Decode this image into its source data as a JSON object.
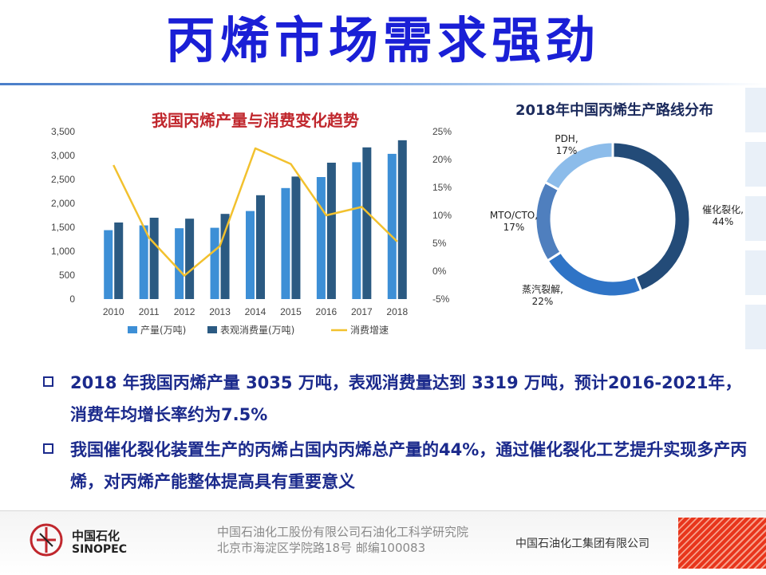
{
  "slide": {
    "title": "丙烯市场需求强劲"
  },
  "chart_data": [
    {
      "type": "bar",
      "title": "我国丙烯产量与消费变化趋势",
      "categories": [
        "2010",
        "2011",
        "2012",
        "2013",
        "2014",
        "2015",
        "2016",
        "2017",
        "2018"
      ],
      "series": [
        {
          "name": "产量(万吨)",
          "type": "bar",
          "axis": "left",
          "color": "#3d8fd6",
          "values": [
            1440,
            1540,
            1480,
            1490,
            1840,
            2320,
            2550,
            2860,
            3035
          ]
        },
        {
          "name": "表观消费量(万吨)",
          "type": "bar",
          "axis": "left",
          "color": "#2b5a82",
          "values": [
            1600,
            1700,
            1680,
            1780,
            2170,
            2560,
            2850,
            3170,
            3319
          ]
        },
        {
          "name": "消费增速",
          "type": "line",
          "axis": "right",
          "color": "#f2c12e",
          "values": [
            19.0,
            6.0,
            -0.8,
            4.5,
            22.0,
            19.2,
            10.0,
            11.5,
            5.3
          ]
        }
      ],
      "yticks_left": [
        "3,500",
        "3,000",
        "2,500",
        "2,000",
        "1,500",
        "1,000",
        "500",
        "0"
      ],
      "yticks_right": [
        "25%",
        "20%",
        "15%",
        "10%",
        "5%",
        "0%",
        "-5%"
      ],
      "ylim_left": [
        0,
        3500
      ],
      "ylim_right": [
        -5,
        25
      ],
      "legend_position": "bottom",
      "grid": false
    },
    {
      "type": "pie",
      "title": "2018年中国丙烯生产路线分布",
      "categories": [
        "催化裂化",
        "蒸汽裂解",
        "MTO/CTO",
        "PDH"
      ],
      "values": [
        44,
        22,
        17,
        17
      ],
      "labels": [
        [
          "催化裂化,",
          "44%"
        ],
        [
          "蒸汽裂解,",
          "22%"
        ],
        [
          "MTO/CTO,",
          "17%"
        ],
        [
          "PDH,",
          "17%"
        ]
      ],
      "colors": [
        "#234b78",
        "#2f74c6",
        "#4f7fbe",
        "#8cbcea"
      ],
      "style": "donut"
    }
  ],
  "bullets": [
    "2018 年我国丙烯产量 3035 万吨，表观消费量达到 3319 万吨，预计2016-2021年，消费年均增长率约为7.5%",
    "我国催化裂化装置生产的丙烯占国内丙烯总产量的44%，通过催化裂化工艺提升实现多产丙烯，对丙烯产能整体提高具有重要意义"
  ],
  "footer": {
    "logo_cn": "中国石化",
    "logo_en": "SINOPEC",
    "org_line1": "中国石油化工股份有限公司石油化工科学研究院",
    "org_line2": "北京市海淀区学院路18号   邮编100083",
    "group": "中国石油化工集团有限公司"
  },
  "colors": {
    "title": "#1a1fd6",
    "chart_title": "#c0272d",
    "bullet_text": "#1b2a8c"
  }
}
